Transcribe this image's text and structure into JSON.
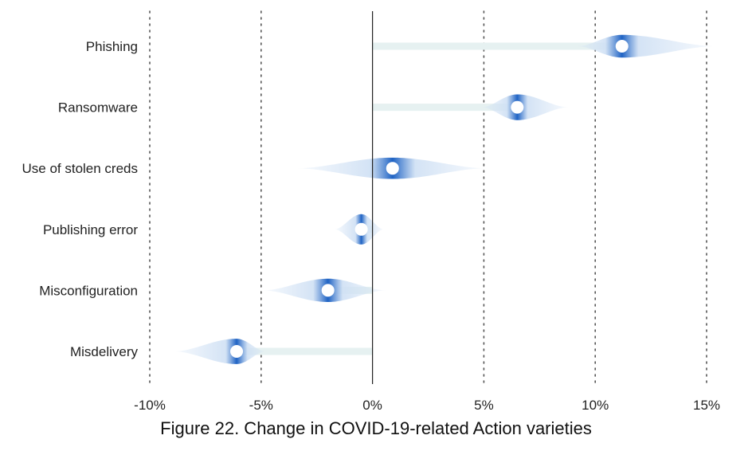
{
  "chart_data": {
    "type": "violin",
    "title": "Figure 22. Change in COVID-19-related Action varieties",
    "xlabel": "",
    "ylabel": "",
    "xlim": [
      -10,
      15
    ],
    "x_ticks": [
      -10,
      -5,
      0,
      5,
      10,
      15
    ],
    "x_tick_labels": [
      "-10%",
      "-5%",
      "0%",
      "5%",
      "10%",
      "15%"
    ],
    "grid": "vertical dotted",
    "categories": [
      "Phishing",
      "Ransomware",
      "Use of stolen creds",
      "Publishing error",
      "Misconfiguration",
      "Misdelivery"
    ],
    "series": [
      {
        "category": "Phishing",
        "point": 11.2,
        "min": 9.2,
        "max": 15.4,
        "bar_from": 0
      },
      {
        "category": "Ransomware",
        "point": 6.5,
        "min": 4.9,
        "max": 8.8,
        "bar_from": 0
      },
      {
        "category": "Use of stolen creds",
        "point": 0.9,
        "min": -3.4,
        "max": 5.1,
        "bar_from": 0
      },
      {
        "category": "Publishing error",
        "point": -0.5,
        "min": -1.7,
        "max": 0.5,
        "bar_from": 0
      },
      {
        "category": "Misconfiguration",
        "point": -2.0,
        "min": -4.9,
        "max": 0.6,
        "bar_from": 0
      },
      {
        "category": "Misdelivery",
        "point": -6.1,
        "min": -8.9,
        "max": -4.8,
        "bar_from": 0
      }
    ],
    "colors": {
      "violin_dark": "#1f63c4",
      "violin_light": "#cfe0f4",
      "bar": "#e6f1f1",
      "grid": "#555555",
      "zero_line": "#222222"
    }
  }
}
